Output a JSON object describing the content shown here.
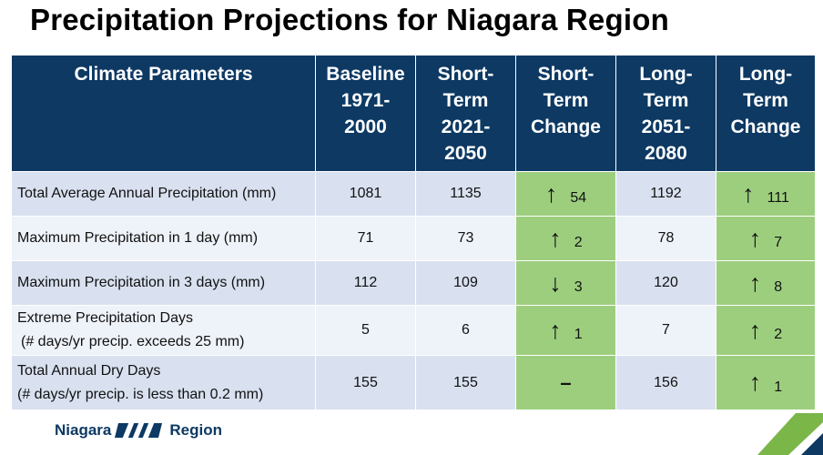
{
  "title": "Precipitation Projections for Niagara Region",
  "headers": [
    [
      "Climate Parameters"
    ],
    [
      "Baseline",
      "1971-",
      "2000"
    ],
    [
      "Short-",
      "Term",
      "2021-",
      "2050"
    ],
    [
      "Short-",
      "Term",
      "Change"
    ],
    [
      "Long-",
      "Term",
      "2051-",
      "2080"
    ],
    [
      "Long-",
      "Term",
      "Change"
    ]
  ],
  "rows": [
    {
      "param": [
        "Total Average Annual Precipitation (mm)"
      ],
      "baseline": "1081",
      "short": "1135",
      "short_dir": "↑",
      "short_change": "54",
      "long": "1192",
      "long_dir": "↑",
      "long_change": "111"
    },
    {
      "param": [
        "Maximum Precipitation in 1 day (mm)"
      ],
      "baseline": "71",
      "short": "73",
      "short_dir": "↑",
      "short_change": "2",
      "long": "78",
      "long_dir": "↑",
      "long_change": "7"
    },
    {
      "param": [
        "Maximum Precipitation in 3 days (mm)"
      ],
      "baseline": "112",
      "short": "109",
      "short_dir": "↓",
      "short_change": "3",
      "long": "120",
      "long_dir": "↑",
      "long_change": "8"
    },
    {
      "param": [
        "Extreme Precipitation Days",
        "(# days/yr precip. exceeds 25 mm)"
      ],
      "baseline": "5",
      "short": "6",
      "short_dir": "↑",
      "short_change": "1",
      "long": "7",
      "long_dir": "↑",
      "long_change": "2"
    },
    {
      "param": [
        "Total Annual Dry Days",
        "(# days/yr precip. is less than 0.2 mm)"
      ],
      "baseline": "155",
      "short": "155",
      "short_dir": "",
      "short_change": "–",
      "long": "156",
      "long_dir": "↑",
      "long_change": "1"
    }
  ],
  "logo": {
    "left": "Niagara",
    "right": "Region"
  },
  "colors": {
    "header": "#0d3963",
    "change": "#9dce7e",
    "row_a": "#d9e1f0",
    "row_b": "#eef2f9",
    "accent": "#7ab648"
  }
}
